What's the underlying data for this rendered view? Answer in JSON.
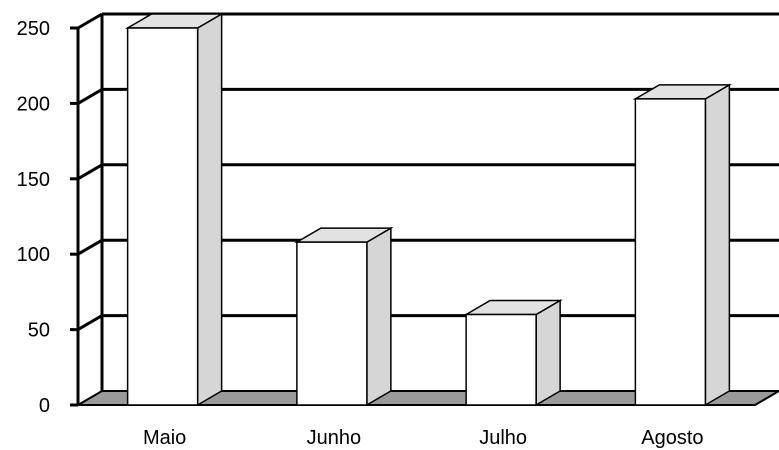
{
  "chart_data": {
    "type": "bar",
    "style": "3d",
    "categories": [
      "Maio",
      "Junho",
      "Julho",
      "Agosto"
    ],
    "values": [
      250,
      108,
      60,
      203
    ],
    "ylim": [
      0,
      250
    ],
    "yticks": [
      0,
      50,
      100,
      150,
      200,
      250
    ],
    "title": "",
    "xlabel": "",
    "ylabel": "",
    "grid": true,
    "legend": "none",
    "colors": {
      "bar_front": "#ffffff",
      "bar_side": "#d6d6d6",
      "bar_top": "#e2e2e2",
      "floor": "#9a9a9a",
      "gridline": "#000000"
    }
  }
}
